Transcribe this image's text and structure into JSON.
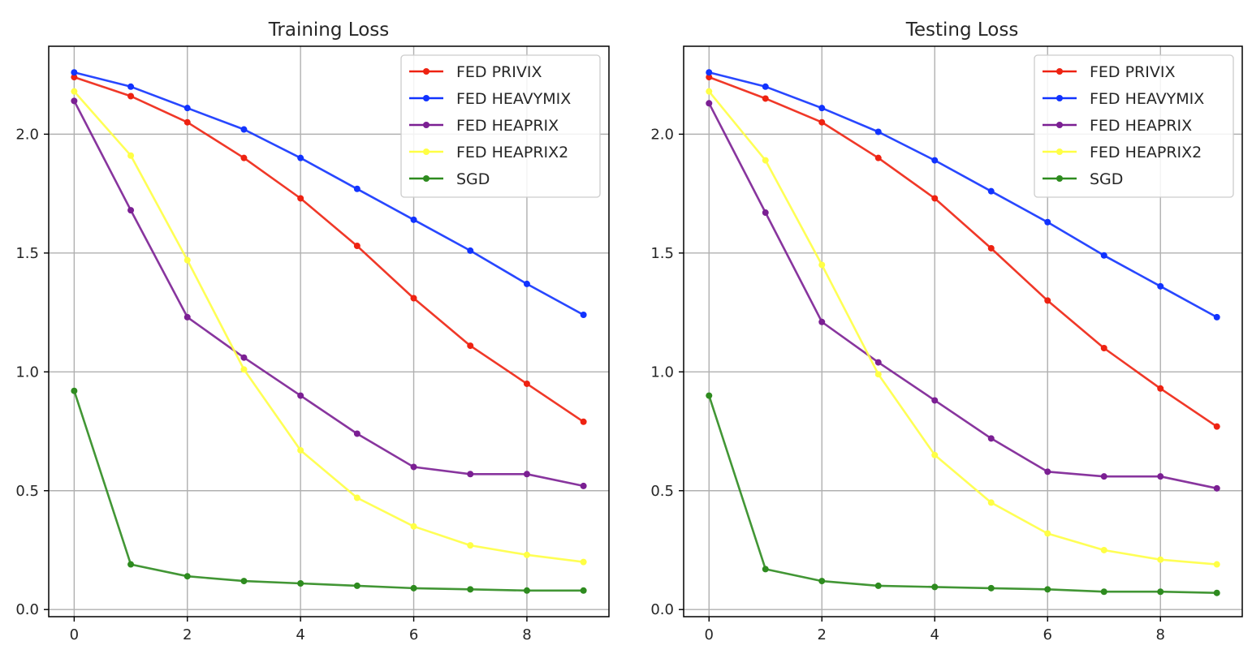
{
  "chart_data": [
    {
      "type": "line",
      "title": "Training Loss",
      "xlabel": "",
      "ylabel": "",
      "xlim": [
        -0.45,
        9.45
      ],
      "ylim": [
        -0.03,
        2.37
      ],
      "xticks": [
        "0",
        "2",
        "4",
        "6",
        "8"
      ],
      "yticks": [
        "0.0",
        "0.5",
        "1.0",
        "1.5",
        "2.0"
      ],
      "grid": true,
      "legend_position": "top-right",
      "x": [
        0,
        1,
        2,
        3,
        4,
        5,
        6,
        7,
        8,
        9
      ],
      "series": [
        {
          "name": "FED PRIVIX",
          "color": "#ee2211",
          "values": [
            2.24,
            2.16,
            2.05,
            1.9,
            1.73,
            1.53,
            1.31,
            1.11,
            0.95,
            0.79
          ]
        },
        {
          "name": "FED HEAVYMIX",
          "color": "#1133ff",
          "values": [
            2.26,
            2.2,
            2.11,
            2.02,
            1.9,
            1.77,
            1.64,
            1.51,
            1.37,
            1.24
          ]
        },
        {
          "name": "FED HEAPRIX",
          "color": "#7b1f93",
          "values": [
            2.14,
            1.68,
            1.23,
            1.06,
            0.9,
            0.74,
            0.6,
            0.57,
            0.57,
            0.52
          ]
        },
        {
          "name": "FED HEAPRIX2",
          "color": "#ffff44",
          "values": [
            2.18,
            1.91,
            1.47,
            1.01,
            0.67,
            0.47,
            0.35,
            0.27,
            0.23,
            0.2
          ]
        },
        {
          "name": "SGD",
          "color": "#2e8b1f",
          "values": [
            0.92,
            0.19,
            0.14,
            0.12,
            0.11,
            0.1,
            0.09,
            0.085,
            0.08,
            0.08
          ]
        }
      ]
    },
    {
      "type": "line",
      "title": "Testing Loss",
      "xlabel": "",
      "ylabel": "",
      "xlim": [
        -0.45,
        9.45
      ],
      "ylim": [
        -0.03,
        2.37
      ],
      "xticks": [
        "0",
        "2",
        "4",
        "6",
        "8"
      ],
      "yticks": [
        "0.0",
        "0.5",
        "1.0",
        "1.5",
        "2.0"
      ],
      "grid": true,
      "legend_position": "top-right",
      "x": [
        0,
        1,
        2,
        3,
        4,
        5,
        6,
        7,
        8,
        9
      ],
      "series": [
        {
          "name": "FED PRIVIX",
          "color": "#ee2211",
          "values": [
            2.24,
            2.15,
            2.05,
            1.9,
            1.73,
            1.52,
            1.3,
            1.1,
            0.93,
            0.77
          ]
        },
        {
          "name": "FED HEAVYMIX",
          "color": "#1133ff",
          "values": [
            2.26,
            2.2,
            2.11,
            2.01,
            1.89,
            1.76,
            1.63,
            1.49,
            1.36,
            1.23
          ]
        },
        {
          "name": "FED HEAPRIX",
          "color": "#7b1f93",
          "values": [
            2.13,
            1.67,
            1.21,
            1.04,
            0.88,
            0.72,
            0.58,
            0.56,
            0.56,
            0.51
          ]
        },
        {
          "name": "FED HEAPRIX2",
          "color": "#ffff44",
          "values": [
            2.18,
            1.89,
            1.45,
            0.99,
            0.65,
            0.45,
            0.32,
            0.25,
            0.21,
            0.19
          ]
        },
        {
          "name": "SGD",
          "color": "#2e8b1f",
          "values": [
            0.9,
            0.17,
            0.12,
            0.1,
            0.095,
            0.09,
            0.085,
            0.075,
            0.075,
            0.07
          ]
        }
      ]
    }
  ]
}
